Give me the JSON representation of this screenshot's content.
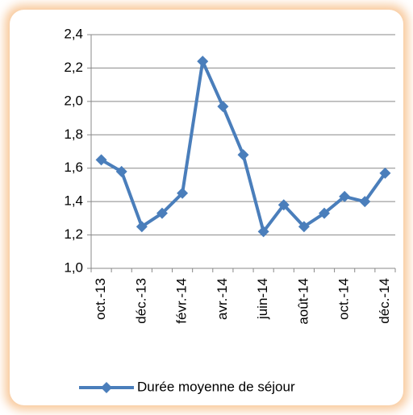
{
  "chart_data": {
    "type": "line",
    "categories": [
      "oct.-13",
      null,
      "déc.-13",
      null,
      "févr.-14",
      null,
      "avr.-14",
      null,
      "juin-14",
      null,
      "août-14",
      null,
      "oct.-14",
      null,
      "déc.-14"
    ],
    "series": [
      {
        "name": "Durée moyenne de séjour",
        "color": "#4a7ebb",
        "values": [
          1.65,
          1.58,
          1.25,
          1.33,
          1.45,
          2.24,
          1.97,
          1.68,
          1.22,
          1.38,
          1.25,
          1.33,
          1.43,
          1.4,
          1.57
        ]
      }
    ],
    "ylim": [
      1.0,
      2.4
    ],
    "yticks": [
      {
        "value": 1.0,
        "label": "1,0"
      },
      {
        "value": 1.2,
        "label": "1,2"
      },
      {
        "value": 1.4,
        "label": "1,4"
      },
      {
        "value": 1.6,
        "label": "1,6"
      },
      {
        "value": 1.8,
        "label": "1,8"
      },
      {
        "value": 2.0,
        "label": "2,0"
      },
      {
        "value": 2.2,
        "label": "2,2"
      },
      {
        "value": 2.4,
        "label": "2,4"
      }
    ],
    "grid": true,
    "legend": "bottom"
  }
}
